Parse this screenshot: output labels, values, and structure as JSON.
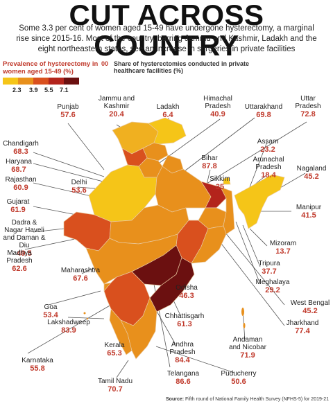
{
  "title": "CUT ACROSS COUNTRY",
  "subtitle": "Some 3.3 per cent of women aged 15-49 have undergone hysterectomy, a marginal rise since 2015-16. Most of the country, barring Jammu and Kashmir, Ladakh and the eight northeastern states, see an increase in surgeries in private facilities",
  "legend": {
    "title": "Prevalence of hysterectomy in women aged 15-49 (%)",
    "colors": [
      "#f5c518",
      "#e8901c",
      "#d9501e",
      "#b3241c",
      "#6b1010"
    ],
    "ticks": [
      "2.3",
      "3.9",
      "5.5",
      "7.1"
    ],
    "share_marker": "00",
    "share_text": "Share of hysterectomies conducted in private healthcare facilities (%)"
  },
  "states": [
    {
      "name": "Punjab",
      "value": "57.6"
    },
    {
      "name": "Jammu and Kashmir",
      "value": "20.4"
    },
    {
      "name": "Ladakh",
      "value": "6.4"
    },
    {
      "name": "Himachal Pradesh",
      "value": "40.9"
    },
    {
      "name": "Uttarakhand",
      "value": "69.8"
    },
    {
      "name": "Uttar Pradesh",
      "value": "72.8"
    },
    {
      "name": "Chandigarh",
      "value": "68.3"
    },
    {
      "name": "Haryana",
      "value": "68.7"
    },
    {
      "name": "Rajasthan",
      "value": "60.9"
    },
    {
      "name": "Delhi",
      "value": "53.6"
    },
    {
      "name": "Bihar",
      "value": "87.8"
    },
    {
      "name": "Assam",
      "value": "23.2"
    },
    {
      "name": "Arunachal Pradesh",
      "value": "18.4"
    },
    {
      "name": "Nagaland",
      "value": "45.2"
    },
    {
      "name": "Gujarat",
      "value": "61.9"
    },
    {
      "name": "Sikkim",
      "value": "35"
    },
    {
      "name": "Manipur",
      "value": "41.5"
    },
    {
      "name": "Dadra & Nagar Haveli and Daman & Diu",
      "value": "49.5"
    },
    {
      "name": "Mizoram",
      "value": "13.7"
    },
    {
      "name": "Madhya Pradesh",
      "value": "62.6"
    },
    {
      "name": "Maharashtra",
      "value": "67.6"
    },
    {
      "name": "Tripura",
      "value": "37.7"
    },
    {
      "name": "Meghalaya",
      "value": "29.2"
    },
    {
      "name": "Odisha",
      "value": "46.3"
    },
    {
      "name": "Goa",
      "value": "53.4"
    },
    {
      "name": "West Bengal",
      "value": "45.2"
    },
    {
      "name": "Chhattisgarh",
      "value": "61.3"
    },
    {
      "name": "Jharkhand",
      "value": "77.4"
    },
    {
      "name": "Lakshadweep",
      "value": "83.9"
    },
    {
      "name": "Kerala",
      "value": "65.3"
    },
    {
      "name": "Andaman and Nicobar",
      "value": "71.9"
    },
    {
      "name": "Andhra Pradesh",
      "value": "84.4"
    },
    {
      "name": "Karnataka",
      "value": "55.8"
    },
    {
      "name": "Telangana",
      "value": "86.6"
    },
    {
      "name": "Puducherry",
      "value": "50.6"
    },
    {
      "name": "Tamil Nadu",
      "value": "70.7"
    }
  ],
  "source": {
    "label": "Source:",
    "text": "Fifth round of National Family Health Survey (NFHS-5) for 2019-21"
  }
}
